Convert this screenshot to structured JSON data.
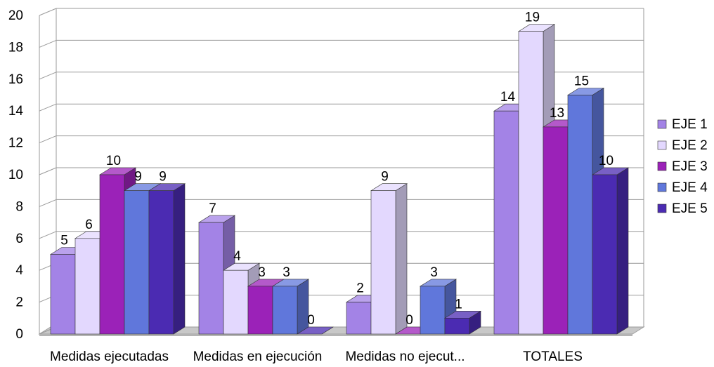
{
  "chart_data": {
    "type": "bar",
    "categories": [
      "Medidas ejecutadas",
      "Medidas en ejecución",
      "Medidas no ejecut...",
      "TOTALES"
    ],
    "series": [
      {
        "name": "EJE 1",
        "values": [
          5,
          7,
          2,
          14
        ],
        "color": "#A383E6"
      },
      {
        "name": "EJE 2",
        "values": [
          6,
          4,
          9,
          19
        ],
        "color": "#E3D8FE"
      },
      {
        "name": "EJE 3",
        "values": [
          10,
          3,
          0,
          13
        ],
        "color": "#9B22B8"
      },
      {
        "name": "EJE 4",
        "values": [
          9,
          3,
          3,
          15
        ],
        "color": "#6077DB"
      },
      {
        "name": "EJE 5",
        "values": [
          9,
          0,
          1,
          10
        ],
        "color": "#4B2BB2"
      }
    ],
    "ylim": [
      0,
      20
    ],
    "yticks": [
      0,
      2,
      4,
      6,
      8,
      10,
      12,
      14,
      16,
      18,
      20
    ],
    "grid": true,
    "legend_position": "right",
    "three_d": true
  }
}
